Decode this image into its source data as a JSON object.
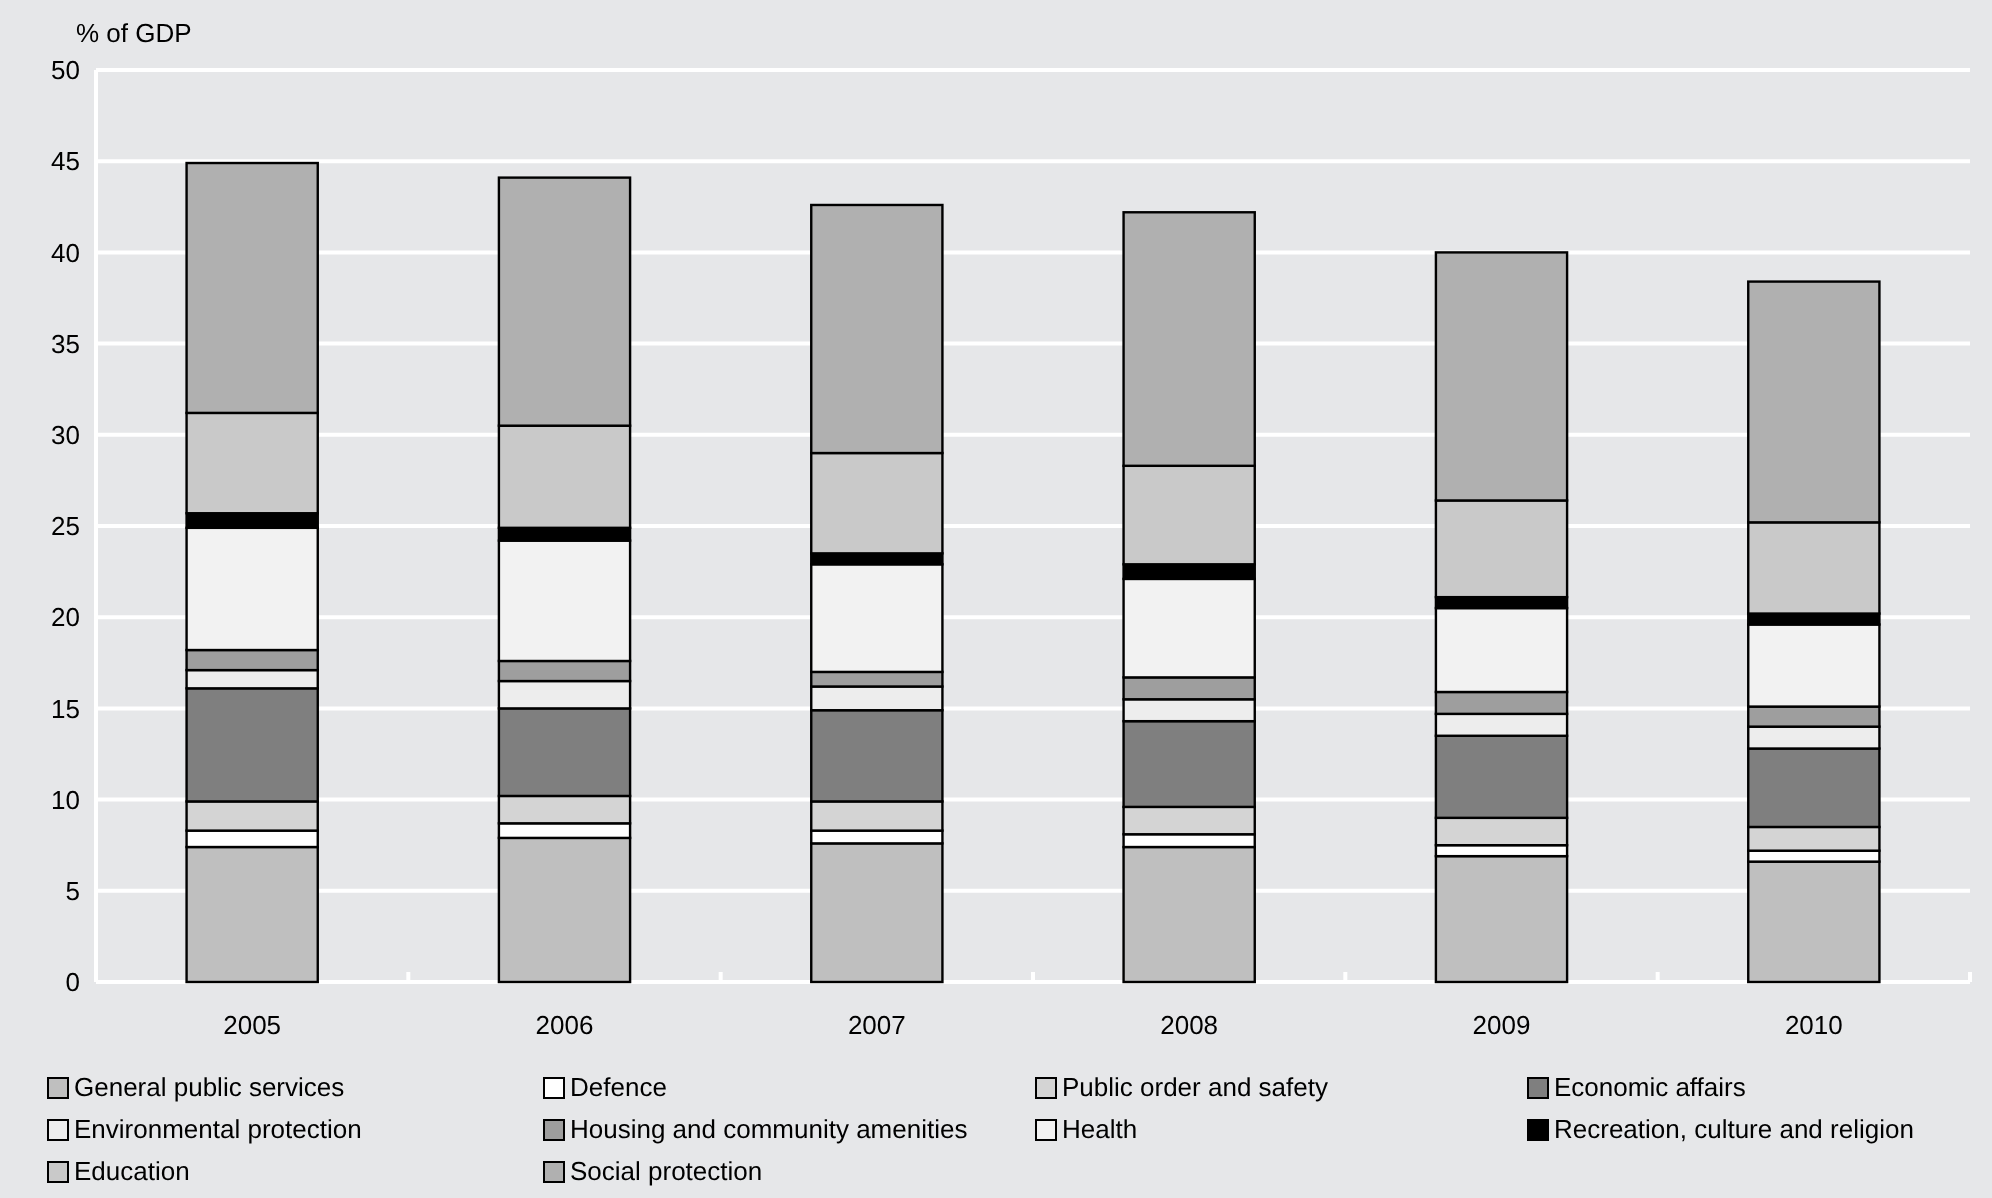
{
  "chart_data": {
    "type": "bar",
    "stacked": true,
    "ylabel": "% of GDP",
    "categories": [
      "2005",
      "2006",
      "2007",
      "2008",
      "2009",
      "2010"
    ],
    "ylim": [
      0,
      50
    ],
    "yticks": [
      0,
      5,
      10,
      15,
      20,
      25,
      30,
      35,
      40,
      45,
      50
    ],
    "grid": "y",
    "legend": "bottom",
    "series": [
      {
        "name": "General public services",
        "color": "#bfbfbf",
        "values": [
          7.4,
          7.9,
          7.6,
          7.4,
          6.9,
          6.6
        ]
      },
      {
        "name": "Defence",
        "color": "#ffffff",
        "values": [
          0.9,
          0.8,
          0.7,
          0.7,
          0.6,
          0.6
        ]
      },
      {
        "name": "Public order and safety",
        "color": "#d4d4d4",
        "values": [
          1.6,
          1.5,
          1.6,
          1.5,
          1.5,
          1.3
        ]
      },
      {
        "name": "Economic affairs",
        "color": "#7f7f7f",
        "values": [
          6.2,
          4.8,
          5.0,
          4.7,
          4.5,
          4.3
        ]
      },
      {
        "name": "Environmental protection",
        "color": "#ededed",
        "values": [
          1.0,
          1.5,
          1.3,
          1.2,
          1.2,
          1.2
        ]
      },
      {
        "name": "Housing and community amenities",
        "color": "#9e9e9e",
        "values": [
          1.1,
          1.1,
          0.8,
          1.2,
          1.2,
          1.1
        ]
      },
      {
        "name": "Health",
        "color": "#f2f2f2",
        "values": [
          6.7,
          6.6,
          5.9,
          5.4,
          4.6,
          4.5
        ]
      },
      {
        "name": "Recreation, culture and religion",
        "color": "#000000",
        "values": [
          0.8,
          0.7,
          0.6,
          0.8,
          0.6,
          0.6
        ]
      },
      {
        "name": "Education",
        "color": "#c9c9c9",
        "values": [
          5.5,
          5.6,
          5.5,
          5.4,
          5.3,
          5.0
        ]
      },
      {
        "name": "Social protection",
        "color": "#b0b0b0",
        "values": [
          13.7,
          13.6,
          13.6,
          13.9,
          13.6,
          13.2
        ]
      }
    ]
  }
}
